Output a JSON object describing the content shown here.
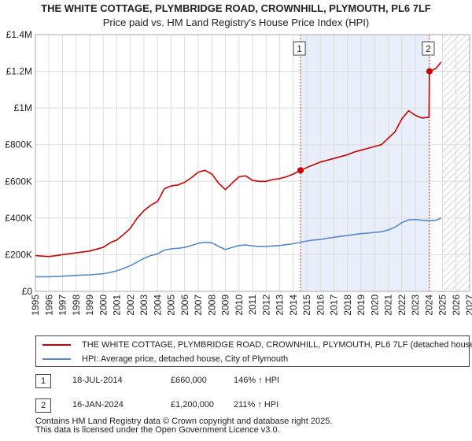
{
  "chart_data": {
    "type": "line",
    "title": "THE WHITE COTTAGE, PLYMBRIDGE ROAD, CROWNHILL, PLYMOUTH, PL6 7LF",
    "subtitle": "Price paid vs. HM Land Registry's House Price Index (HPI)",
    "xlim": [
      1995,
      2027
    ],
    "ylim": [
      0,
      1400000
    ],
    "x_ticks": [
      1995,
      1996,
      1997,
      1998,
      1999,
      2000,
      2001,
      2002,
      2003,
      2004,
      2005,
      2006,
      2007,
      2008,
      2009,
      2010,
      2011,
      2012,
      2013,
      2014,
      2015,
      2016,
      2017,
      2018,
      2019,
      2020,
      2021,
      2022,
      2023,
      2024,
      2025,
      2026,
      2027
    ],
    "x_tick_labels": [
      "1995",
      "1996",
      "1997",
      "1998",
      "1999",
      "2000",
      "2001",
      "2002",
      "2003",
      "2004",
      "2005",
      "2006",
      "2007",
      "2008",
      "2009",
      "2010",
      "2011",
      "2012",
      "2013",
      "2014",
      "2015",
      "2016",
      "2017",
      "2018",
      "2019",
      "2020",
      "2021",
      "2022",
      "2023",
      "2024",
      "2025",
      "2026",
      "2027"
    ],
    "y_ticks": [
      0,
      200000,
      400000,
      600000,
      800000,
      1000000,
      1200000,
      1400000
    ],
    "y_tick_labels": [
      "£0",
      "£200K",
      "£400K",
      "£600K",
      "£800K",
      "£1M",
      "£1.2M",
      "£1.4M"
    ],
    "grid": true,
    "shaded_span": [
      2014.54,
      2024.04
    ],
    "hatched_from": 2025.0,
    "series": [
      {
        "name": "THE WHITE COTTAGE, PLYMBRIDGE ROAD, CROWNHILL, PLYMOUTH, PL6 7LF (detached house)",
        "color": "#cc0000",
        "x": [
          1995.0,
          1996.0,
          1997.0,
          1998.0,
          1999.0,
          2000.0,
          2000.5,
          2001.0,
          2001.5,
          2002.0,
          2002.5,
          2003.0,
          2003.5,
          2004.0,
          2004.5,
          2005.0,
          2005.5,
          2006.0,
          2006.5,
          2007.0,
          2007.5,
          2008.0,
          2008.5,
          2009.0,
          2009.5,
          2010.0,
          2010.5,
          2011.0,
          2011.5,
          2012.0,
          2012.5,
          2013.0,
          2013.5,
          2014.0,
          2014.54,
          2015.0,
          2015.5,
          2016.0,
          2016.5,
          2017.0,
          2017.5,
          2018.0,
          2018.5,
          2019.0,
          2019.5,
          2020.0,
          2020.5,
          2021.0,
          2021.5,
          2022.0,
          2022.5,
          2023.0,
          2023.5,
          2024.0,
          2024.04,
          2024.5,
          2024.9
        ],
        "y": [
          195000,
          190000,
          200000,
          210000,
          220000,
          240000,
          265000,
          280000,
          310000,
          345000,
          400000,
          440000,
          470000,
          490000,
          560000,
          575000,
          580000,
          595000,
          620000,
          650000,
          660000,
          640000,
          590000,
          555000,
          590000,
          625000,
          630000,
          605000,
          600000,
          600000,
          610000,
          615000,
          625000,
          640000,
          660000,
          675000,
          690000,
          705000,
          715000,
          725000,
          735000,
          745000,
          760000,
          770000,
          780000,
          790000,
          800000,
          835000,
          870000,
          940000,
          985000,
          960000,
          945000,
          950000,
          1200000,
          1215000,
          1250000
        ]
      },
      {
        "name": "HPI: Average price, detached house, City of Plymouth",
        "color": "#5588cc",
        "x": [
          1995.0,
          1996.0,
          1997.0,
          1998.0,
          1999.0,
          2000.0,
          2000.5,
          2001.0,
          2001.5,
          2002.0,
          2002.5,
          2003.0,
          2003.5,
          2004.0,
          2004.5,
          2005.0,
          2005.5,
          2006.0,
          2006.5,
          2007.0,
          2007.5,
          2008.0,
          2008.5,
          2009.0,
          2009.5,
          2010.0,
          2010.5,
          2011.0,
          2011.5,
          2012.0,
          2012.5,
          2013.0,
          2013.5,
          2014.0,
          2014.54,
          2015.0,
          2015.5,
          2016.0,
          2016.5,
          2017.0,
          2017.5,
          2018.0,
          2018.5,
          2019.0,
          2019.5,
          2020.0,
          2020.5,
          2021.0,
          2021.5,
          2022.0,
          2022.5,
          2023.0,
          2023.5,
          2024.0,
          2024.5,
          2024.9
        ],
        "y": [
          80000,
          80000,
          83000,
          87000,
          90000,
          96000,
          103000,
          112000,
          125000,
          140000,
          160000,
          180000,
          195000,
          205000,
          225000,
          232000,
          235000,
          240000,
          250000,
          262000,
          268000,
          265000,
          245000,
          228000,
          240000,
          250000,
          253000,
          248000,
          245000,
          245000,
          248000,
          250000,
          255000,
          260000,
          268000,
          275000,
          280000,
          283000,
          290000,
          295000,
          300000,
          305000,
          310000,
          315000,
          318000,
          322000,
          325000,
          335000,
          350000,
          375000,
          390000,
          392000,
          388000,
          385000,
          388000,
          400000
        ]
      }
    ],
    "annotations": [
      {
        "label": "1",
        "x": 2014.54,
        "y": 660000
      },
      {
        "label": "2",
        "x": 2024.04,
        "y": 1200000
      }
    ]
  },
  "legend": {
    "property_label": "THE WHITE COTTAGE, PLYMBRIDGE ROAD, CROWNHILL, PLYMOUTH, PL6 7LF (detached house)",
    "hpi_label": "HPI: Average price, detached house, City of Plymouth",
    "property_color": "#cc0000",
    "hpi_color": "#5588cc"
  },
  "sales": [
    {
      "num": "1",
      "date": "18-JUL-2014",
      "price": "£660,000",
      "hpi": "146% ↑ HPI"
    },
    {
      "num": "2",
      "date": "16-JAN-2024",
      "price": "£1,200,000",
      "hpi": "211% ↑ HPI"
    }
  ],
  "footer": {
    "line1": "Contains HM Land Registry data © Crown copyright and database right 2025.",
    "line2": "This data is licensed under the Open Government Licence v3.0."
  }
}
